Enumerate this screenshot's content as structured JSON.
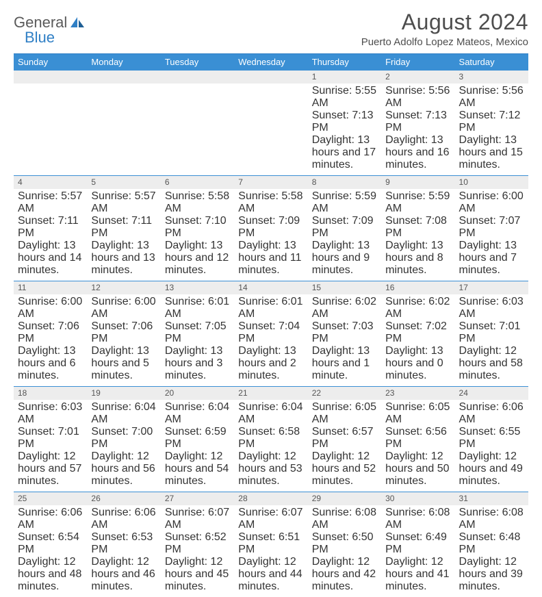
{
  "logo": {
    "text1": "General",
    "text2": "Blue"
  },
  "title": "August 2024",
  "location": "Puerto Adolfo Lopez Mateos, Mexico",
  "colors": {
    "header_bg": "#3a8fd4",
    "header_text": "#ffffff",
    "rule": "#3a8fd4",
    "daynum_bg": "#ededed",
    "text": "#333333",
    "logo_gray": "#5a5a5a",
    "logo_blue": "#2f7fc5"
  },
  "day_names": [
    "Sunday",
    "Monday",
    "Tuesday",
    "Wednesday",
    "Thursday",
    "Friday",
    "Saturday"
  ],
  "weeks": [
    {
      "nums": [
        "",
        "",
        "",
        "",
        "1",
        "2",
        "3"
      ],
      "cells": [
        {
          "sunrise": "",
          "sunset": "",
          "daylight": ""
        },
        {
          "sunrise": "",
          "sunset": "",
          "daylight": ""
        },
        {
          "sunrise": "",
          "sunset": "",
          "daylight": ""
        },
        {
          "sunrise": "",
          "sunset": "",
          "daylight": ""
        },
        {
          "sunrise": "Sunrise: 5:55 AM",
          "sunset": "Sunset: 7:13 PM",
          "daylight": "Daylight: 13 hours and 17 minutes."
        },
        {
          "sunrise": "Sunrise: 5:56 AM",
          "sunset": "Sunset: 7:13 PM",
          "daylight": "Daylight: 13 hours and 16 minutes."
        },
        {
          "sunrise": "Sunrise: 5:56 AM",
          "sunset": "Sunset: 7:12 PM",
          "daylight": "Daylight: 13 hours and 15 minutes."
        }
      ]
    },
    {
      "nums": [
        "4",
        "5",
        "6",
        "7",
        "8",
        "9",
        "10"
      ],
      "cells": [
        {
          "sunrise": "Sunrise: 5:57 AM",
          "sunset": "Sunset: 7:11 PM",
          "daylight": "Daylight: 13 hours and 14 minutes."
        },
        {
          "sunrise": "Sunrise: 5:57 AM",
          "sunset": "Sunset: 7:11 PM",
          "daylight": "Daylight: 13 hours and 13 minutes."
        },
        {
          "sunrise": "Sunrise: 5:58 AM",
          "sunset": "Sunset: 7:10 PM",
          "daylight": "Daylight: 13 hours and 12 minutes."
        },
        {
          "sunrise": "Sunrise: 5:58 AM",
          "sunset": "Sunset: 7:09 PM",
          "daylight": "Daylight: 13 hours and 11 minutes."
        },
        {
          "sunrise": "Sunrise: 5:59 AM",
          "sunset": "Sunset: 7:09 PM",
          "daylight": "Daylight: 13 hours and 9 minutes."
        },
        {
          "sunrise": "Sunrise: 5:59 AM",
          "sunset": "Sunset: 7:08 PM",
          "daylight": "Daylight: 13 hours and 8 minutes."
        },
        {
          "sunrise": "Sunrise: 6:00 AM",
          "sunset": "Sunset: 7:07 PM",
          "daylight": "Daylight: 13 hours and 7 minutes."
        }
      ]
    },
    {
      "nums": [
        "11",
        "12",
        "13",
        "14",
        "15",
        "16",
        "17"
      ],
      "cells": [
        {
          "sunrise": "Sunrise: 6:00 AM",
          "sunset": "Sunset: 7:06 PM",
          "daylight": "Daylight: 13 hours and 6 minutes."
        },
        {
          "sunrise": "Sunrise: 6:00 AM",
          "sunset": "Sunset: 7:06 PM",
          "daylight": "Daylight: 13 hours and 5 minutes."
        },
        {
          "sunrise": "Sunrise: 6:01 AM",
          "sunset": "Sunset: 7:05 PM",
          "daylight": "Daylight: 13 hours and 3 minutes."
        },
        {
          "sunrise": "Sunrise: 6:01 AM",
          "sunset": "Sunset: 7:04 PM",
          "daylight": "Daylight: 13 hours and 2 minutes."
        },
        {
          "sunrise": "Sunrise: 6:02 AM",
          "sunset": "Sunset: 7:03 PM",
          "daylight": "Daylight: 13 hours and 1 minute."
        },
        {
          "sunrise": "Sunrise: 6:02 AM",
          "sunset": "Sunset: 7:02 PM",
          "daylight": "Daylight: 13 hours and 0 minutes."
        },
        {
          "sunrise": "Sunrise: 6:03 AM",
          "sunset": "Sunset: 7:01 PM",
          "daylight": "Daylight: 12 hours and 58 minutes."
        }
      ]
    },
    {
      "nums": [
        "18",
        "19",
        "20",
        "21",
        "22",
        "23",
        "24"
      ],
      "cells": [
        {
          "sunrise": "Sunrise: 6:03 AM",
          "sunset": "Sunset: 7:01 PM",
          "daylight": "Daylight: 12 hours and 57 minutes."
        },
        {
          "sunrise": "Sunrise: 6:04 AM",
          "sunset": "Sunset: 7:00 PM",
          "daylight": "Daylight: 12 hours and 56 minutes."
        },
        {
          "sunrise": "Sunrise: 6:04 AM",
          "sunset": "Sunset: 6:59 PM",
          "daylight": "Daylight: 12 hours and 54 minutes."
        },
        {
          "sunrise": "Sunrise: 6:04 AM",
          "sunset": "Sunset: 6:58 PM",
          "daylight": "Daylight: 12 hours and 53 minutes."
        },
        {
          "sunrise": "Sunrise: 6:05 AM",
          "sunset": "Sunset: 6:57 PM",
          "daylight": "Daylight: 12 hours and 52 minutes."
        },
        {
          "sunrise": "Sunrise: 6:05 AM",
          "sunset": "Sunset: 6:56 PM",
          "daylight": "Daylight: 12 hours and 50 minutes."
        },
        {
          "sunrise": "Sunrise: 6:06 AM",
          "sunset": "Sunset: 6:55 PM",
          "daylight": "Daylight: 12 hours and 49 minutes."
        }
      ]
    },
    {
      "nums": [
        "25",
        "26",
        "27",
        "28",
        "29",
        "30",
        "31"
      ],
      "cells": [
        {
          "sunrise": "Sunrise: 6:06 AM",
          "sunset": "Sunset: 6:54 PM",
          "daylight": "Daylight: 12 hours and 48 minutes."
        },
        {
          "sunrise": "Sunrise: 6:06 AM",
          "sunset": "Sunset: 6:53 PM",
          "daylight": "Daylight: 12 hours and 46 minutes."
        },
        {
          "sunrise": "Sunrise: 6:07 AM",
          "sunset": "Sunset: 6:52 PM",
          "daylight": "Daylight: 12 hours and 45 minutes."
        },
        {
          "sunrise": "Sunrise: 6:07 AM",
          "sunset": "Sunset: 6:51 PM",
          "daylight": "Daylight: 12 hours and 44 minutes."
        },
        {
          "sunrise": "Sunrise: 6:08 AM",
          "sunset": "Sunset: 6:50 PM",
          "daylight": "Daylight: 12 hours and 42 minutes."
        },
        {
          "sunrise": "Sunrise: 6:08 AM",
          "sunset": "Sunset: 6:49 PM",
          "daylight": "Daylight: 12 hours and 41 minutes."
        },
        {
          "sunrise": "Sunrise: 6:08 AM",
          "sunset": "Sunset: 6:48 PM",
          "daylight": "Daylight: 12 hours and 39 minutes."
        }
      ]
    }
  ]
}
